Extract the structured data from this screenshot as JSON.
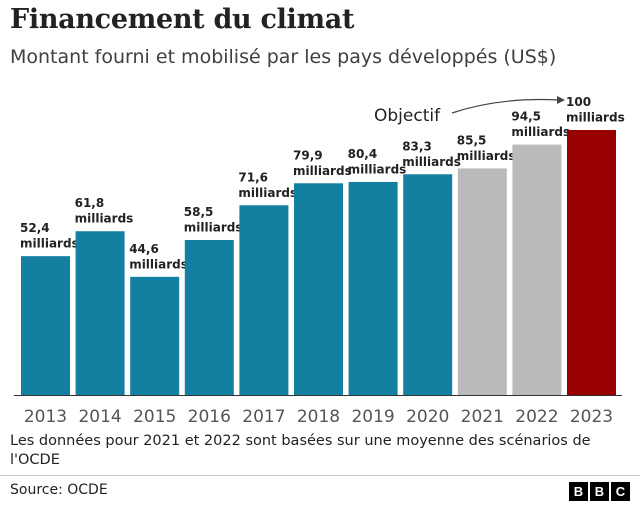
{
  "header": {
    "title": "Financement du climat",
    "subtitle": "Montant fourni et mobilisé par les pays développés (US$)"
  },
  "chart_data": {
    "type": "bar",
    "categories": [
      "2013",
      "2014",
      "2015",
      "2016",
      "2017",
      "2018",
      "2019",
      "2020",
      "2021",
      "2022",
      "2023"
    ],
    "values": [
      52.4,
      61.8,
      44.6,
      58.5,
      71.6,
      79.9,
      80.4,
      83.3,
      85.5,
      94.5,
      100
    ],
    "value_labels": [
      "52,4",
      "61,8",
      "44,6",
      "58,5",
      "71,6",
      "79,9",
      "80,4",
      "83,3",
      "85,5",
      "94,5",
      "100"
    ],
    "unit_label": "milliards",
    "bar_kinds": [
      "actual",
      "actual",
      "actual",
      "actual",
      "actual",
      "actual",
      "actual",
      "actual",
      "estimate",
      "estimate",
      "target"
    ],
    "colors": {
      "actual": "#1380a1",
      "estimate": "#bababa",
      "target": "#990000"
    },
    "annotation": "Objectif",
    "ylim": [
      0,
      100
    ],
    "grid": false,
    "legend": "none"
  },
  "footer": {
    "note": "Les données pour 2021 et 2022 sont basées sur une moyenne des scénarios de l'OCDE",
    "source": "Source: OCDE",
    "logo_letters": [
      "B",
      "B",
      "C"
    ]
  }
}
